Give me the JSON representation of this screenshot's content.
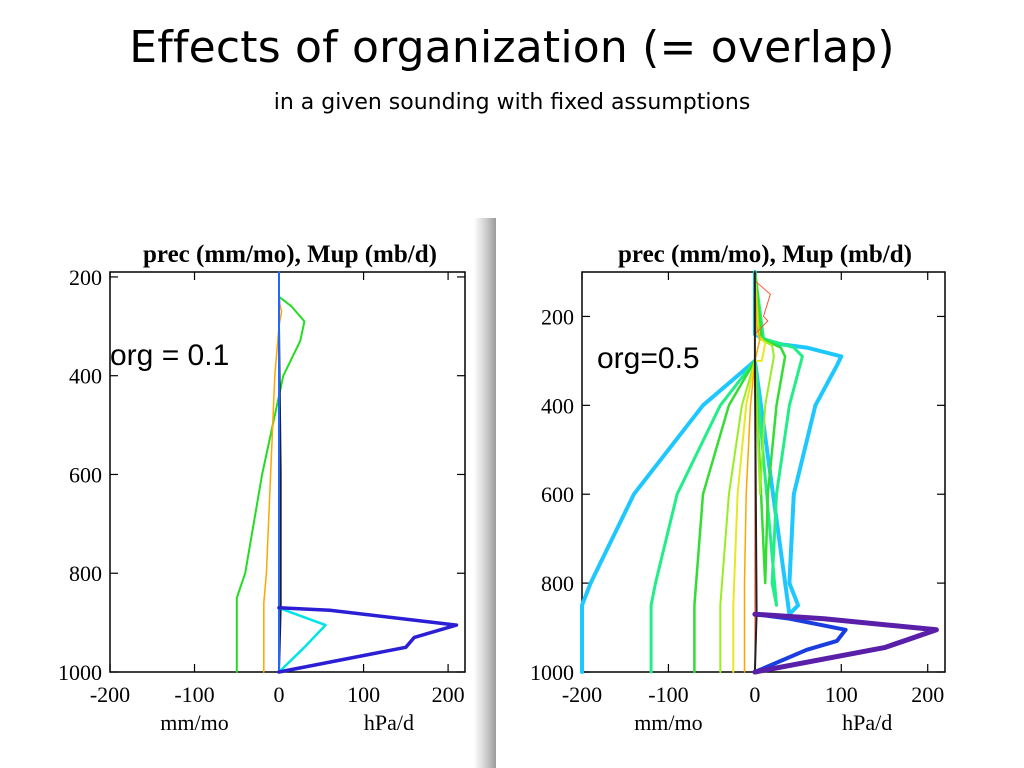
{
  "slide": {
    "title": "Effects of organization (= overlap)",
    "subtitle": "in a given sounding with fixed assumptions"
  },
  "chart_data": [
    {
      "type": "line",
      "title": "prec (mm/mo),   Mup (mb/d)",
      "annotation": "org = 0.1",
      "xlabel_left": "mm/mo",
      "xlabel_right": "hPa/d",
      "xlim": [
        -200,
        220
      ],
      "ylim": [
        1000,
        190
      ],
      "y_reversed": true,
      "xticks": [
        -200,
        -100,
        0,
        100,
        200
      ],
      "yticks": [
        200,
        400,
        600,
        800,
        1000
      ],
      "series": [
        {
          "color": "#22dd22",
          "width": 2,
          "x": [
            0,
            0,
            15,
            30,
            25,
            5,
            -20,
            -40,
            -50,
            -50
          ],
          "y": [
            190,
            240,
            260,
            290,
            330,
            400,
            600,
            800,
            850,
            1000
          ]
        },
        {
          "color": "#ffa500",
          "width": 1.5,
          "x": [
            0,
            0,
            3,
            0,
            -5,
            -10,
            -15,
            -18,
            -18
          ],
          "y": [
            190,
            250,
            270,
            300,
            400,
            600,
            800,
            860,
            1000
          ]
        },
        {
          "color": "#ff3333",
          "width": 1,
          "x": [
            0,
            0,
            1,
            0,
            0
          ],
          "y": [
            190,
            235,
            250,
            280,
            1000
          ]
        },
        {
          "color": "#222222",
          "width": 2,
          "x": [
            0,
            0,
            2,
            2,
            0
          ],
          "y": [
            190,
            300,
            600,
            870,
            1000
          ]
        },
        {
          "color": "#2266ff",
          "width": 2,
          "x": [
            0,
            0
          ],
          "y": [
            190,
            1000
          ]
        },
        {
          "color": "#00e5e5",
          "width": 2.5,
          "x": [
            0,
            15,
            55,
            30,
            0
          ],
          "y": [
            870,
            880,
            905,
            950,
            1000
          ]
        },
        {
          "color": "#2b1ed4",
          "width": 3.5,
          "x": [
            0,
            60,
            210,
            160,
            150,
            0
          ],
          "y": [
            870,
            875,
            905,
            930,
            950,
            1000
          ]
        }
      ]
    },
    {
      "type": "line",
      "title": "prec (mm/mo),   Mup (mb/d)",
      "annotation": "org=0.5",
      "xlabel_left": "mm/mo",
      "xlabel_right": "hPa/d",
      "xlim": [
        -200,
        220
      ],
      "ylim": [
        1000,
        100
      ],
      "y_reversed": true,
      "xticks": [
        -200,
        -100,
        0,
        100,
        200
      ],
      "yticks": [
        200,
        400,
        600,
        800,
        1000
      ],
      "series": [
        {
          "color": "#1ec8ff",
          "width": 4,
          "x": [
            0,
            0,
            20,
            60,
            100,
            95,
            70,
            45,
            40,
            50,
            40,
            0,
            -60,
            -140,
            -190,
            -200,
            -200
          ],
          "y": [
            100,
            240,
            260,
            270,
            290,
            310,
            400,
            600,
            800,
            850,
            870,
            300,
            400,
            600,
            800,
            850,
            1000
          ]
        },
        {
          "color": "#22ee88",
          "width": 3,
          "x": [
            0,
            10,
            45,
            55,
            40,
            25,
            20,
            25,
            0,
            -40,
            -90,
            -115,
            -120,
            -120
          ],
          "y": [
            100,
            250,
            270,
            290,
            400,
            600,
            800,
            850,
            300,
            400,
            600,
            800,
            850,
            1000
          ]
        },
        {
          "color": "#33dd33",
          "width": 2.5,
          "x": [
            0,
            8,
            30,
            35,
            25,
            15,
            12,
            0,
            -30,
            -60,
            -70,
            -70
          ],
          "y": [
            100,
            250,
            270,
            290,
            400,
            600,
            800,
            300,
            400,
            600,
            850,
            1000
          ]
        },
        {
          "color": "#99ee22",
          "width": 2,
          "x": [
            0,
            5,
            20,
            22,
            12,
            6,
            0,
            -15,
            -30,
            -40,
            -40
          ],
          "y": [
            100,
            250,
            265,
            290,
            400,
            600,
            300,
            400,
            600,
            850,
            1000
          ]
        },
        {
          "color": "#e8e822",
          "width": 2,
          "x": [
            0,
            3,
            12,
            8,
            0,
            -10,
            -20,
            -25,
            -25
          ],
          "y": [
            100,
            240,
            260,
            300,
            300,
            400,
            600,
            850,
            1000
          ]
        },
        {
          "color": "#ffa500",
          "width": 1.5,
          "x": [
            0,
            2,
            6,
            0,
            -5,
            -10,
            -12,
            -12
          ],
          "y": [
            100,
            220,
            250,
            300,
            400,
            600,
            800,
            1000
          ]
        },
        {
          "color": "#ff5533",
          "width": 1,
          "x": [
            0,
            0,
            18,
            10,
            15,
            0,
            0
          ],
          "y": [
            100,
            120,
            150,
            200,
            210,
            240,
            1000
          ]
        },
        {
          "color": "#222222",
          "width": 2,
          "x": [
            0,
            0,
            2,
            0
          ],
          "y": [
            100,
            300,
            870,
            1000
          ]
        },
        {
          "color": "#1a3de0",
          "width": 4,
          "x": [
            0,
            40,
            105,
            95,
            60,
            0
          ],
          "y": [
            870,
            880,
            905,
            930,
            950,
            1000
          ]
        },
        {
          "color": "#5a1fa8",
          "width": 5,
          "x": [
            0,
            80,
            210,
            180,
            150,
            0
          ],
          "y": [
            870,
            880,
            905,
            925,
            945,
            1000
          ]
        }
      ]
    }
  ]
}
